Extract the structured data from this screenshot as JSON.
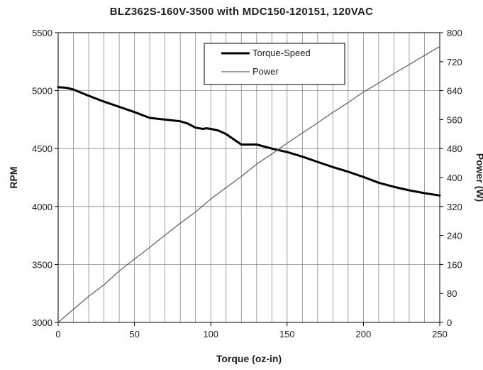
{
  "chart_data": {
    "type": "line",
    "title": "BLZ362S-160V-3500 with MDC150-120151, 120VAC",
    "xlabel": "Torque (oz-in)",
    "ylabel": "RPM",
    "y2label": "Power (W)",
    "xlim": [
      0,
      250
    ],
    "ylim": [
      3000,
      5500
    ],
    "y2lim": [
      0,
      800
    ],
    "xticks": [
      "0",
      "50",
      "100",
      "150",
      "200",
      "250"
    ],
    "yticks": [
      "3000",
      "3500",
      "4000",
      "4500",
      "5000",
      "5500"
    ],
    "y2ticks": [
      "0",
      "80",
      "160",
      "240",
      "320",
      "400",
      "480",
      "560",
      "640",
      "720",
      "800"
    ],
    "grid": true,
    "legend_position": "top-center",
    "series": [
      {
        "name": "Torque-Speed",
        "axis": "left",
        "color": "#000000",
        "x": [
          0,
          5,
          10,
          20,
          30,
          40,
          50,
          60,
          70,
          80,
          85,
          90,
          95,
          97,
          100,
          105,
          110,
          120,
          130,
          140,
          150,
          160,
          170,
          180,
          190,
          200,
          210,
          220,
          230,
          240,
          250
        ],
        "y": [
          5030,
          5025,
          5010,
          4955,
          4905,
          4860,
          4815,
          4765,
          4750,
          4735,
          4715,
          4680,
          4670,
          4675,
          4670,
          4655,
          4625,
          4535,
          4535,
          4500,
          4470,
          4430,
          4385,
          4340,
          4300,
          4255,
          4205,
          4170,
          4140,
          4115,
          4095
        ]
      },
      {
        "name": "Power",
        "axis": "right",
        "color": "#666666",
        "x": [
          0,
          10,
          20,
          30,
          40,
          50,
          60,
          70,
          80,
          90,
          100,
          110,
          120,
          130,
          140,
          150,
          160,
          170,
          180,
          190,
          200,
          210,
          220,
          230,
          240,
          250
        ],
        "y": [
          0,
          36,
          72,
          104,
          142,
          175,
          207,
          241,
          274,
          305,
          341,
          372,
          403,
          437,
          465,
          495,
          523,
          551,
          580,
          607,
          636,
          661,
          687,
          712,
          737,
          762
        ]
      }
    ]
  }
}
